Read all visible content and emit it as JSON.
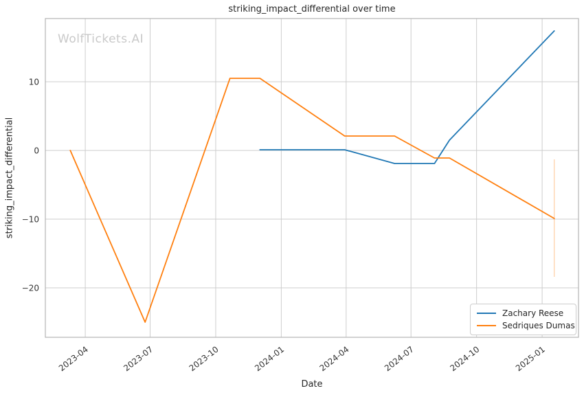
{
  "chart_data": {
    "type": "line",
    "title": "striking_impact_differential over time",
    "xlabel": "Date",
    "ylabel": "striking_impact_differential",
    "watermark": "WolfTickets.AI",
    "grid": true,
    "legend_position": "lower right",
    "xlim": [
      "2023-02-04",
      "2025-02-21"
    ],
    "ylim": [
      -27.2,
      19.2
    ],
    "x_ticks": [
      {
        "date": "2023-04-01",
        "label": "2023-04"
      },
      {
        "date": "2023-07-01",
        "label": "2023-07"
      },
      {
        "date": "2023-10-01",
        "label": "2023-10"
      },
      {
        "date": "2024-01-01",
        "label": "2024-01"
      },
      {
        "date": "2024-04-01",
        "label": "2024-04"
      },
      {
        "date": "2024-07-01",
        "label": "2024-07"
      },
      {
        "date": "2024-10-01",
        "label": "2024-10"
      },
      {
        "date": "2025-01-01",
        "label": "2025-01"
      }
    ],
    "y_ticks": [
      {
        "value": 10,
        "label": "10"
      },
      {
        "value": 0,
        "label": "0"
      },
      {
        "value": -10,
        "label": "−10"
      },
      {
        "value": -20,
        "label": "−20"
      }
    ],
    "series": [
      {
        "name": "Zachary Reese",
        "color": "#1f77b4",
        "points": [
          [
            "2023-12-02",
            0.1
          ],
          [
            "2024-03-30",
            0.1
          ],
          [
            "2024-06-08",
            -1.9
          ],
          [
            "2024-08-03",
            -1.9
          ],
          [
            "2024-08-24",
            1.5
          ],
          [
            "2025-01-18",
            17.4
          ]
        ]
      },
      {
        "name": "Sedriques Dumas",
        "color": "#ff7f0e",
        "points": [
          [
            "2023-03-11",
            0.0
          ],
          [
            "2023-06-24",
            -25.0
          ],
          [
            "2023-10-21",
            10.5
          ],
          [
            "2023-12-02",
            10.5
          ],
          [
            "2024-03-30",
            2.1
          ],
          [
            "2024-06-08",
            2.1
          ],
          [
            "2024-08-03",
            -1.1
          ],
          [
            "2024-08-24",
            -1.1
          ],
          [
            "2025-01-18",
            -9.9
          ]
        ],
        "error_bar": {
          "date": "2025-01-18",
          "from": -18.4,
          "to": -1.3
        }
      }
    ],
    "style": {
      "background": "#ffffff",
      "grid_color": "#cdcdcd",
      "border_color": "#b3b3b3",
      "text_color": "#262626",
      "watermark_color": "#c9c9c9"
    }
  }
}
